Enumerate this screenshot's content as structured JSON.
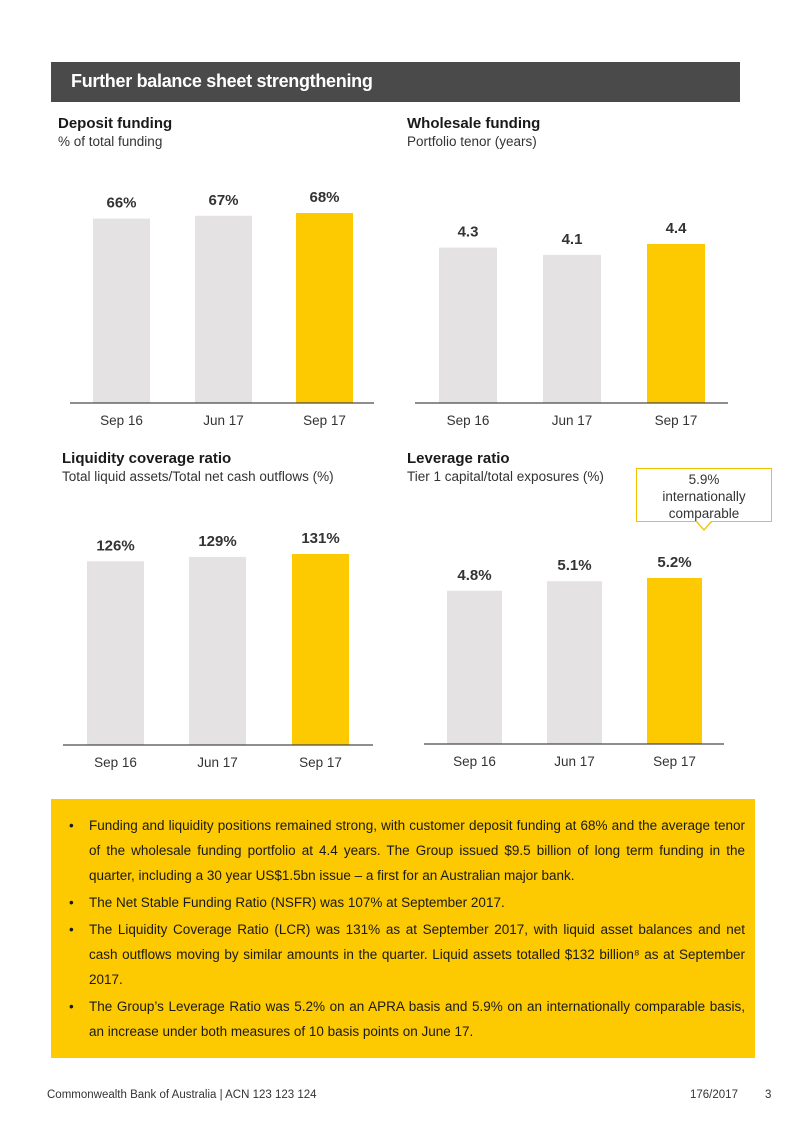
{
  "header": {
    "title": "Further balance sheet strengthening"
  },
  "colors": {
    "bar_grey": "#e4e2e2",
    "bar_highlight": "#fdc900",
    "banner": "#4a4a4a",
    "notes_bg": "#fdc900"
  },
  "chart_data": [
    {
      "type": "bar",
      "title": "Deposit funding",
      "subtitle": "% of total funding",
      "categories": [
        "Sep 16",
        "Jun 17",
        "Sep 17"
      ],
      "values": [
        66,
        67,
        68
      ],
      "labels": [
        "66%",
        "67%",
        "68%"
      ],
      "highlight_index": 2,
      "ylim": [
        0,
        68
      ]
    },
    {
      "type": "bar",
      "title": "Wholesale funding",
      "subtitle": "Portfolio tenor (years)",
      "categories": [
        "Sep 16",
        "Jun 17",
        "Sep 17"
      ],
      "values": [
        4.3,
        4.1,
        4.4
      ],
      "labels": [
        "4.3",
        "4.1",
        "4.4"
      ],
      "highlight_index": 2,
      "ylim": [
        0,
        4.4
      ]
    },
    {
      "type": "bar",
      "title": "Liquidity coverage ratio",
      "subtitle": "Total liquid assets/Total net cash outflows (%)",
      "categories": [
        "Sep 16",
        "Jun 17",
        "Sep 17"
      ],
      "values": [
        126,
        129,
        131
      ],
      "labels": [
        "126%",
        "129%",
        "131%"
      ],
      "highlight_index": 2,
      "ylim": [
        0,
        131
      ]
    },
    {
      "type": "bar",
      "title": "Leverage ratio",
      "subtitle": "Tier 1 capital/total exposures (%)",
      "categories": [
        "Sep 16",
        "Jun 17",
        "Sep 17"
      ],
      "values": [
        4.8,
        5.1,
        5.2
      ],
      "labels": [
        "4.8%",
        "5.1%",
        "5.2%"
      ],
      "highlight_index": 2,
      "ylim": [
        0,
        5.2
      ],
      "annotation": "5.9% internationally comparable"
    }
  ],
  "callout": {
    "line1": "5.9%",
    "line2": "internationally",
    "line3": "comparable"
  },
  "notes": [
    "Funding and liquidity positions remained strong, with customer deposit funding at 68% and the average tenor of the wholesale funding portfolio at 4.4 years. The Group issued $9.5 billion of long term funding in the quarter, including a 30 year US$1.5bn issue – a first for an Australian major bank.",
    "The Net Stable Funding Ratio (NSFR) was 107% at September 2017.",
    "The Liquidity Coverage Ratio (LCR) was 131% as at September 2017, with liquid asset balances and net cash outflows moving by similar amounts in the quarter. Liquid assets totalled $132 billion⁸ as at September 2017.",
    "The Group’s Leverage Ratio was 5.2% on an APRA basis and 5.9% on an internationally comparable basis, an increase under both measures of 10 basis points on June 17."
  ],
  "footer": {
    "left": "Commonwealth Bank of Australia | ACN 123 123 124",
    "date": "176/2017",
    "page": "3"
  }
}
